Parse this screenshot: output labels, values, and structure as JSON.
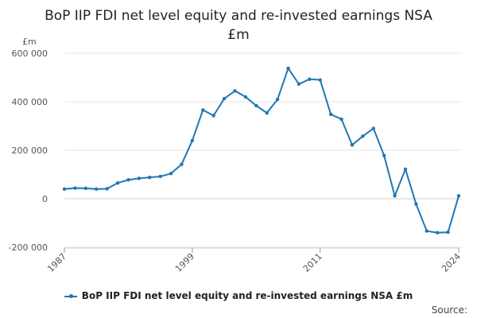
{
  "chart_data": {
    "type": "line",
    "title_lines": [
      "BoP IIP FDI net level equity and re-invested earnings NSA",
      "£m"
    ],
    "unit_label": "£m",
    "x": [
      1987,
      1988,
      1989,
      1990,
      1991,
      1992,
      1993,
      1994,
      1995,
      1996,
      1997,
      1998,
      1999,
      2000,
      2001,
      2002,
      2003,
      2004,
      2005,
      2006,
      2007,
      2008,
      2009,
      2010,
      2011,
      2012,
      2013,
      2014,
      2015,
      2016,
      2017,
      2018,
      2019,
      2020,
      2021,
      2022,
      2023,
      2024
    ],
    "series": [
      {
        "name": "BoP IIP FDI net level equity and re-invested earnings NSA £m",
        "color": "#1f77b4",
        "values": [
          40000,
          44000,
          43000,
          40000,
          41000,
          65000,
          78000,
          84000,
          88000,
          92000,
          104000,
          142000,
          240000,
          366000,
          343000,
          413000,
          445000,
          420000,
          384000,
          354000,
          410000,
          538000,
          473000,
          493000,
          490000,
          348000,
          328000,
          222000,
          258000,
          290000,
          178000,
          12000,
          122000,
          -22000,
          -133000,
          -140000,
          -138000,
          12000
        ]
      }
    ],
    "ylim": [
      -200000,
      600000
    ],
    "yticks": [
      -200000,
      0,
      200000,
      400000,
      600000
    ],
    "ytick_labels": [
      "-200 000",
      "0",
      "200 000",
      "400 000",
      "600 000"
    ],
    "xlim": [
      1987,
      2024
    ],
    "xtick_labels": [
      "1987",
      "1999",
      "2011",
      "2024"
    ],
    "grid": true,
    "legend_position": "bottom"
  },
  "legend": {
    "label": "BoP IIP FDI net level equity and re-invested earnings NSA £m"
  },
  "source": {
    "label": "Source:"
  }
}
